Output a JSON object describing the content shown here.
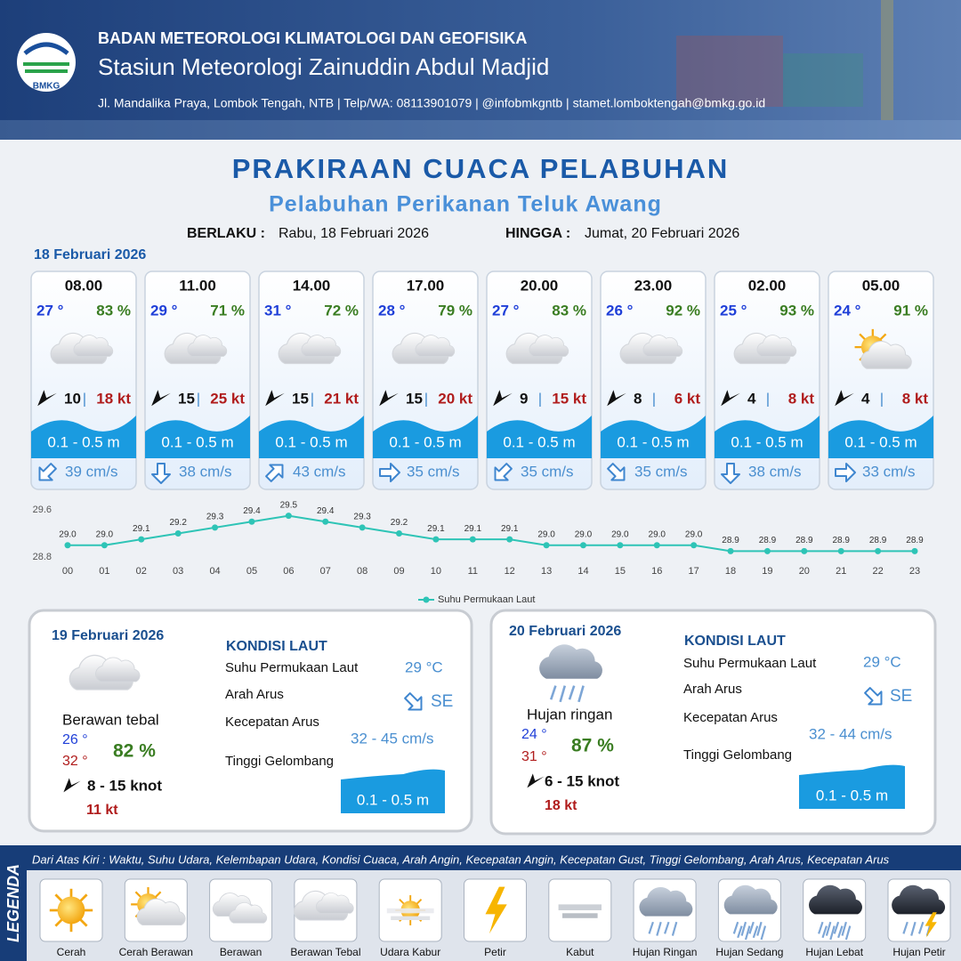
{
  "header": {
    "logo": "BMKG",
    "org": "BADAN METEOROLOGI KLIMATOLOGI DAN GEOFISIKA",
    "station": "Stasiun Meteorologi Zainuddin Abdul Madjid",
    "address": "Jl. Mandalika Praya, Lombok Tengah, NTB | Telp/WA: 08113901079 | @infobmkgntb | stamet.lomboktengah@bmkg.go.id"
  },
  "title": "PRAKIRAAN CUACA PELABUHAN",
  "subtitle": "Pelabuhan Perikanan Teluk Awang",
  "validity": {
    "from_label": "BERLAKU :",
    "from": "Rabu, 18 Februari 2026",
    "until_label": "HINGGA :",
    "until": "Jumat, 20 Februari 2026"
  },
  "day1": {
    "date": "18 Februari 2026",
    "hourly": [
      {
        "time": "08.00",
        "temp": "27 °",
        "humidity": "83 %",
        "wind": "10",
        "sep": "|",
        "gust": "18 kt",
        "wave": "0.1 - 0.5 m",
        "current": "39 cm/s"
      },
      {
        "time": "11.00",
        "temp": "29 °",
        "humidity": "71 %",
        "wind": "15",
        "sep": "|",
        "gust": "25 kt",
        "wave": "0.1 - 0.5 m",
        "current": "38 cm/s"
      },
      {
        "time": "14.00",
        "temp": "31 °",
        "humidity": "72 %",
        "wind": "15",
        "sep": "|",
        "gust": "21 kt",
        "wave": "0.1 - 0.5 m",
        "current": "43 cm/s"
      },
      {
        "time": "17.00",
        "temp": "28 °",
        "humidity": "79 %",
        "wind": "15",
        "sep": "|",
        "gust": "20 kt",
        "wave": "0.1 - 0.5 m",
        "current": "35 cm/s"
      },
      {
        "time": "20.00",
        "temp": "27 °",
        "humidity": "83 %",
        "wind": "9",
        "sep": "|",
        "gust": "15 kt",
        "wave": "0.1 - 0.5 m",
        "current": "35 cm/s"
      },
      {
        "time": "23.00",
        "temp": "26 °",
        "humidity": "92 %",
        "wind": "8",
        "sep": "|",
        "gust": "6 kt",
        "wave": "0.1 - 0.5 m",
        "current": "35 cm/s"
      },
      {
        "time": "02.00",
        "temp": "25 °",
        "humidity": "93 %",
        "wind": "4",
        "sep": "|",
        "gust": "8 kt",
        "wave": "0.1 - 0.5 m",
        "current": "38 cm/s"
      },
      {
        "time": "05.00",
        "temp": "24 °",
        "humidity": "91 %",
        "wind": "4",
        "sep": "|",
        "gust": "8 kt",
        "wave": "0.1 - 0.5 m",
        "current": "33 cm/s"
      }
    ]
  },
  "chart_data": {
    "type": "line",
    "categories": [
      "00",
      "01",
      "02",
      "03",
      "04",
      "05",
      "06",
      "07",
      "08",
      "09",
      "10",
      "11",
      "12",
      "13",
      "14",
      "15",
      "16",
      "17",
      "18",
      "19",
      "20",
      "21",
      "22",
      "23"
    ],
    "series": [
      {
        "name": "Suhu Permukaan Laut",
        "color": "#2ec4b6",
        "values": [
          29.0,
          29.0,
          29.1,
          29.2,
          29.3,
          29.4,
          29.5,
          29.4,
          29.3,
          29.2,
          29.1,
          29.1,
          29.1,
          29.0,
          29.0,
          29.0,
          29.0,
          29.0,
          28.9,
          28.9,
          28.9,
          28.9,
          28.9,
          28.9
        ],
        "value_labels": [
          "29.0",
          "29.0",
          "29.1",
          "29.2",
          "29.3",
          "29.4",
          "29.5",
          "29.4",
          "29.3",
          "29.2",
          "29.1",
          "29.1",
          "29.1",
          "29.0",
          "29.0",
          "29.0",
          "29.0",
          "29.0",
          "28.9",
          "28.9",
          "28.9",
          "28.9",
          "28.9",
          "28.9"
        ]
      }
    ],
    "ylim": [
      28.8,
      29.6
    ],
    "yticks": [
      28.8,
      29.6
    ],
    "grid": false,
    "legend": "bottom"
  },
  "days": [
    {
      "date": "19 Februari 2026",
      "condition": "Berawan tebal",
      "tmin": "26 °",
      "tmax": "32 °",
      "humidity": "82 %",
      "wind": "8  - 15 knot",
      "gust": "11 kt",
      "sea_title": "KONDISI LAUT",
      "labels": [
        "Suhu Permukaan Laut",
        "Arah Arus",
        "Kecepatan Arus",
        "Tinggi Gelombang"
      ],
      "sst": "29 °C",
      "current_dir": "SE",
      "current_speed": "32 - 45 cm/s",
      "wave": "0.1 - 0.5 m"
    },
    {
      "date": "20 Februari 2026",
      "condition": "Hujan ringan",
      "tmin": "24 °",
      "tmax": "31 °",
      "humidity": "87 %",
      "wind": "6  - 15 knot",
      "gust": "18 kt",
      "sea_title": "KONDISI LAUT",
      "labels": [
        "Suhu Permukaan Laut",
        "Arah Arus",
        "Kecepatan Arus",
        "Tinggi Gelombang"
      ],
      "sst": "29 °C",
      "current_dir": "SE",
      "current_speed": "32 - 44 cm/s",
      "wave": "0.1 - 0.5 m"
    }
  ],
  "legend": {
    "title": "LEGENDA",
    "description": "Dari Atas Kiri : Waktu, Suhu Udara, Kelembapan Udara, Kondisi Cuaca, Arah Angin, Kecepatan Angin, Kecepatan Gust, Tinggi Gelombang, Arah Arus, Kecepatan Arus",
    "items": [
      "Cerah",
      "Cerah Berawan",
      "Berawan",
      "Berawan Tebal",
      "Udara Kabur",
      "Petir",
      "Kabut",
      "Hujan Ringan",
      "Hujan Sedang",
      "Hujan Lebat",
      "Hujan Petir"
    ]
  }
}
